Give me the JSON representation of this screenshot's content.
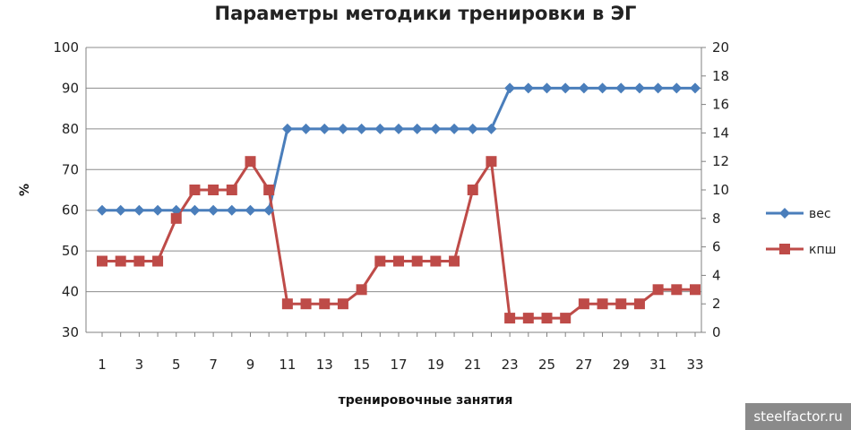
{
  "chart_data": {
    "type": "line",
    "title": "Параметры методики тренировки в ЭГ",
    "xlabel": "тренировочные занятия",
    "ylabel": "%",
    "x": [
      1,
      2,
      3,
      4,
      5,
      6,
      7,
      8,
      9,
      10,
      11,
      12,
      13,
      14,
      15,
      16,
      17,
      18,
      19,
      20,
      21,
      22,
      23,
      24,
      25,
      26,
      27,
      28,
      29,
      30,
      31,
      32,
      33
    ],
    "x_tick_labels": [
      "1",
      "3",
      "5",
      "7",
      "9",
      "11",
      "13",
      "15",
      "17",
      "19",
      "21",
      "23",
      "25",
      "27",
      "29",
      "31",
      "33"
    ],
    "y_tick_labels": [
      "30",
      "40",
      "50",
      "60",
      "70",
      "80",
      "90",
      "100"
    ],
    "y2_tick_labels": [
      "0",
      "2",
      "4",
      "6",
      "8",
      "10",
      "12",
      "14",
      "16",
      "18",
      "20"
    ],
    "ylim": [
      30,
      100
    ],
    "y2lim": [
      0,
      20
    ],
    "grid": true,
    "legend_position": "right",
    "series": [
      {
        "name": "вес",
        "axis": "left",
        "color": "#4a7ebb",
        "marker": "diamond",
        "values": [
          60,
          60,
          60,
          60,
          60,
          60,
          60,
          60,
          60,
          60,
          80,
          80,
          80,
          80,
          80,
          80,
          80,
          80,
          80,
          80,
          80,
          80,
          90,
          90,
          90,
          90,
          90,
          90,
          90,
          90,
          90,
          90,
          90
        ]
      },
      {
        "name": "кпш",
        "axis": "right",
        "color": "#be4b48",
        "marker": "square",
        "values": [
          5,
          5,
          5,
          5,
          8,
          10,
          10,
          10,
          12,
          10,
          2,
          2,
          2,
          2,
          3,
          5,
          5,
          5,
          5,
          5,
          10,
          12,
          1,
          1,
          1,
          1,
          2,
          2,
          2,
          2,
          3,
          3,
          3
        ]
      }
    ]
  },
  "watermark": "steelfactor.ru"
}
